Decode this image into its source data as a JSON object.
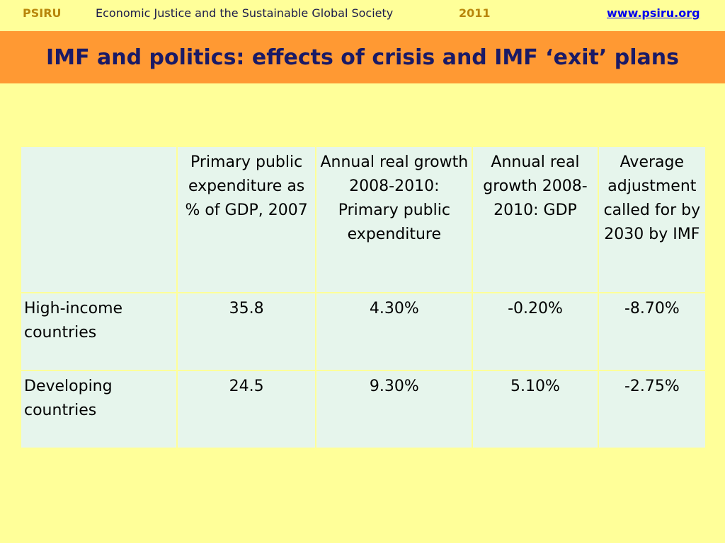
{
  "header": {
    "org": "PSIRU",
    "subtitle": "Economic Justice and the Sustainable Global Society",
    "year": "2011",
    "url": "www.psiru.org"
  },
  "title": "IMF and politics: effects of crisis and  IMF ‘exit’ plans",
  "table": {
    "columns": [
      "",
      "Primary public expenditure as % of GDP, 2007",
      "Annual real growth 2008-2010: Primary public expenditure",
      "Annual real growth 2008-2010: GDP",
      "Average adjustment called for by 2030 by IMF"
    ],
    "rows": [
      {
        "label": "High-income countries",
        "values": [
          "35.8",
          "4.30%",
          "-0.20%",
          "-8.70%"
        ]
      },
      {
        "label": "Developing countries",
        "values": [
          "24.5",
          "9.30%",
          "5.10%",
          "-2.75%"
        ]
      }
    ]
  },
  "colors": {
    "background": "#FFFF99",
    "title_band": "#FF9933",
    "title_text": "#1a1a66",
    "header_accent": "#B8860B",
    "link": "#0000EE",
    "cell_background": "#E6F5EC"
  }
}
